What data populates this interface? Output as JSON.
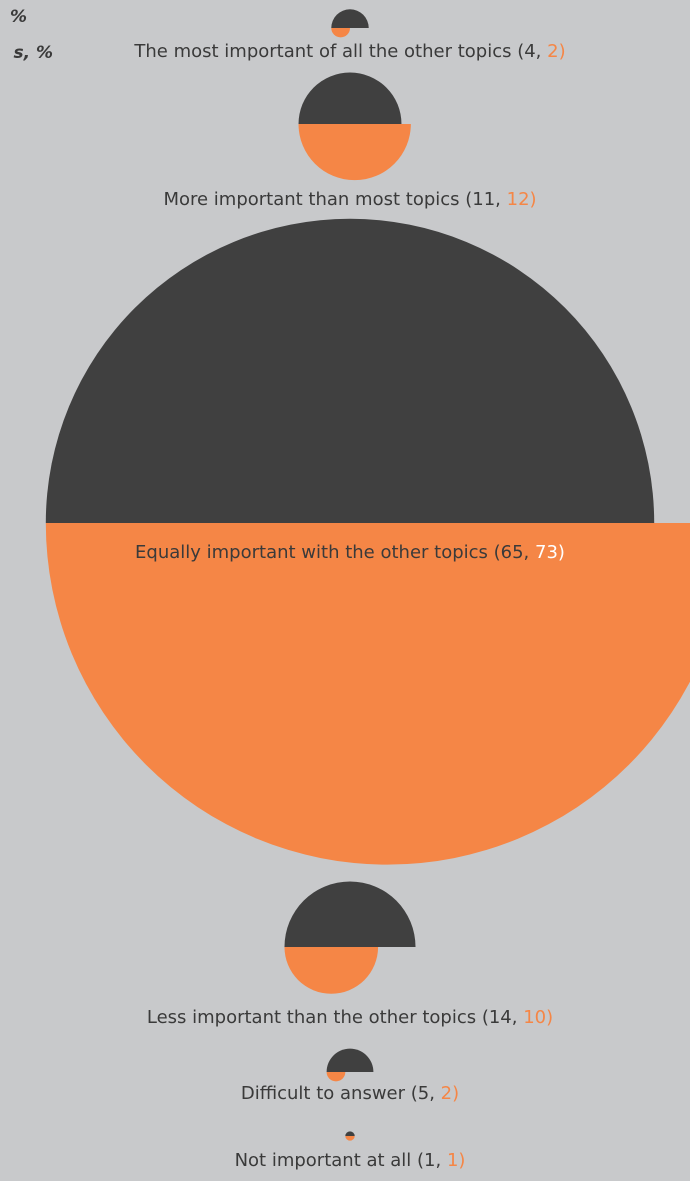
{
  "chart_data": {
    "type": "semicircle",
    "legend": [
      "%",
      "s, %"
    ],
    "categories": [
      "The most important of all the other topics",
      "More important than most topics",
      "Equally important with the other topics",
      "Less important than the other topics",
      "Difficult to answer",
      "Not important at all"
    ],
    "labels": [
      {
        "text": "The most important of all the other topics (4, ",
        "highlight": "2)"
      },
      {
        "text": "More important than most topics (11, ",
        "highlight": "12)"
      },
      {
        "text": "Equally important with the other topics (65, ",
        "highlight": "73)"
      },
      {
        "text": "Less important than the other topics (14, ",
        "highlight": "10)"
      },
      {
        "text": "Difficult to answer (5, ",
        "highlight": "2)"
      },
      {
        "text": "Not important at all (1, ",
        "highlight": "1)"
      }
    ],
    "series": [
      {
        "color": "#404040",
        "values": [
          4,
          11,
          65,
          14,
          5,
          1
        ]
      },
      {
        "color": "#f58646",
        "values": [
          2,
          12,
          73,
          10,
          2,
          1
        ]
      }
    ]
  }
}
